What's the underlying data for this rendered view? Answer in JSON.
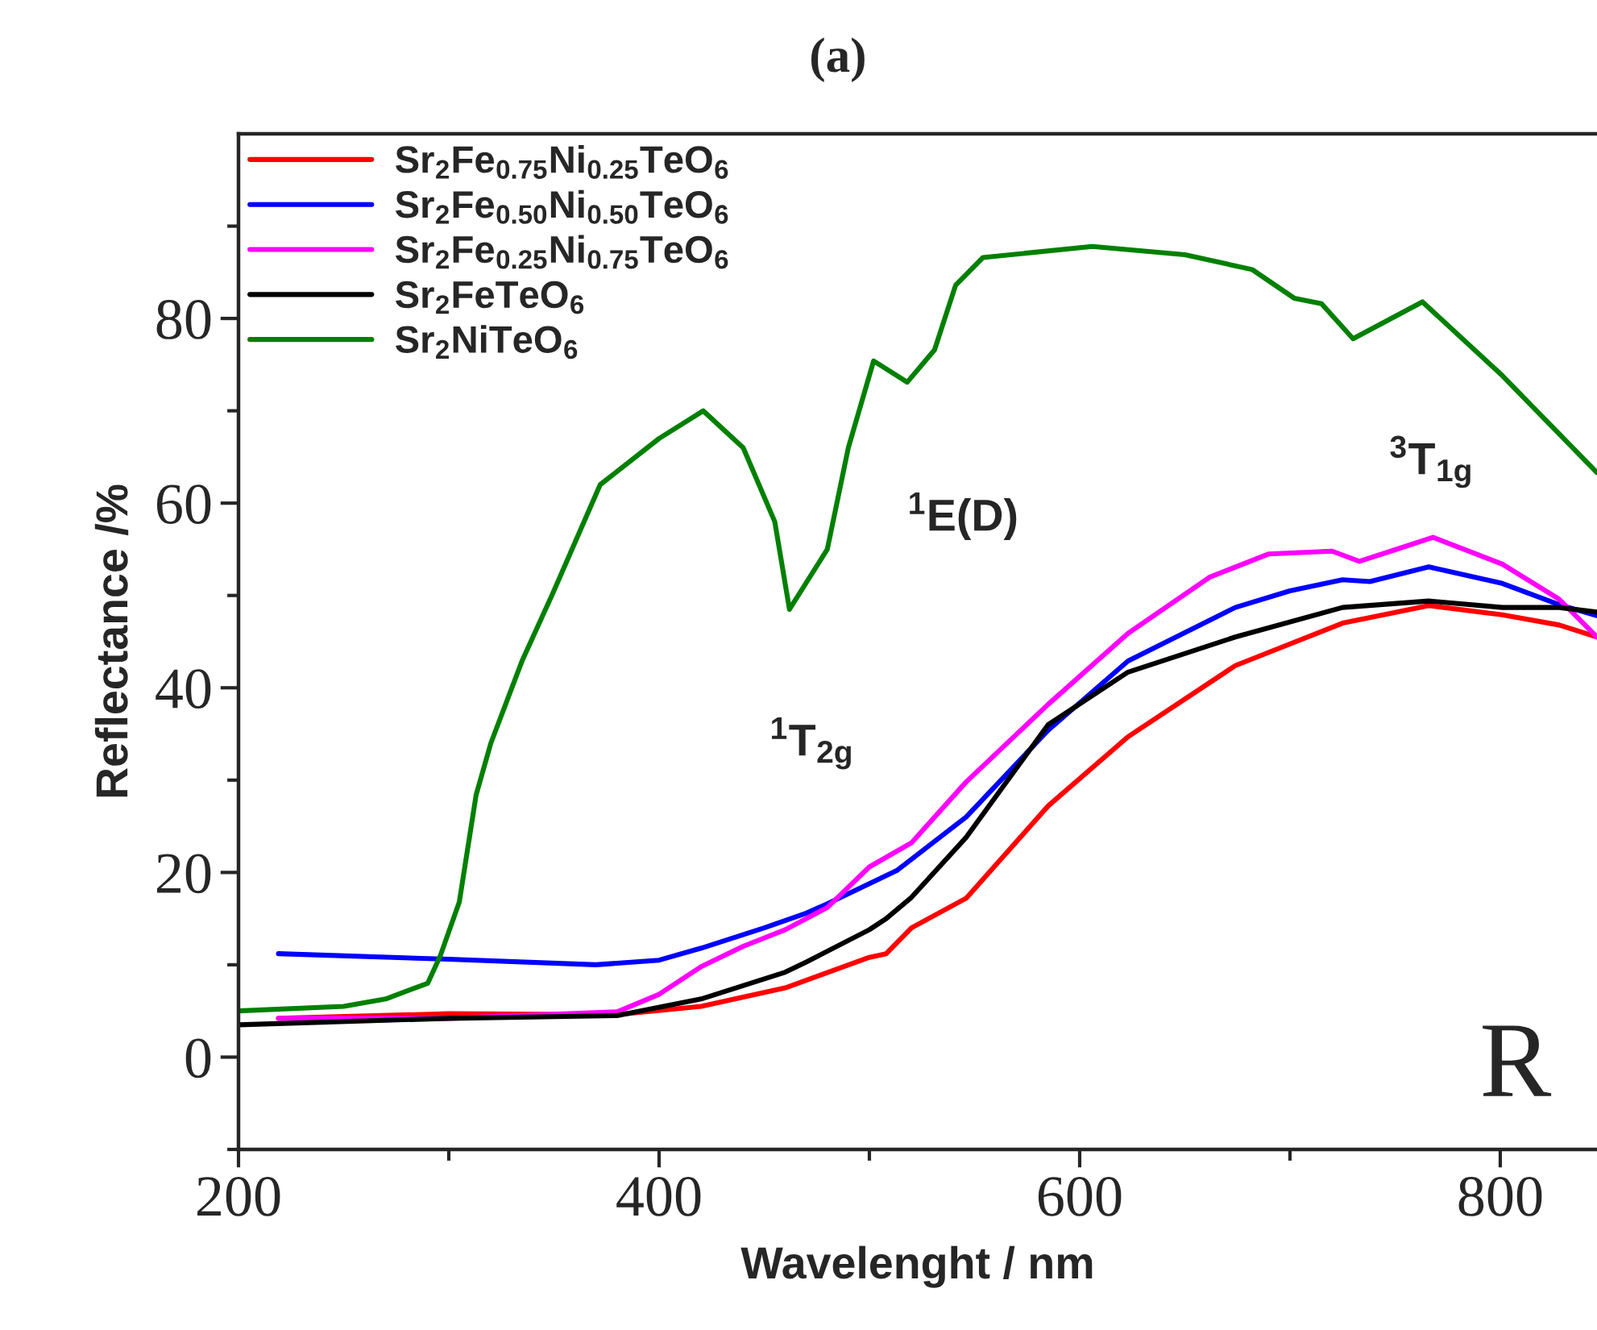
{
  "chart_data": {
    "type": "line",
    "title": "(a)",
    "xlabel": "Wavelenght / nm",
    "ylabel": "Reflectance /%",
    "xlim": [
      200,
      846
    ],
    "ylim": [
      -10,
      100
    ],
    "xticks": [
      200,
      {
        "value": 300,
        "label": null
      },
      400,
      {
        "value": 500,
        "label": null
      },
      600,
      {
        "value": 700,
        "label": null
      },
      800
    ],
    "yticks": [
      {
        "value": -10,
        "label": null
      },
      0,
      {
        "value": 10,
        "label": null
      },
      20,
      {
        "value": 30,
        "label": null
      },
      40,
      {
        "value": 50,
        "label": null
      },
      60,
      {
        "value": 70,
        "label": null
      },
      80,
      {
        "value": 90,
        "label": null
      }
    ],
    "grid": false,
    "legend": "top left",
    "marker": "none",
    "line_style": "solid",
    "series": [
      {
        "name": "Sr$_{2}$Fe$_{0.75}$Ni$_{0.25}$TeO$_{6}$",
        "color": "#ff0000",
        "x": [
          219,
          300,
          380,
          420,
          460,
          500,
          508,
          520,
          546,
          585,
          623,
          674,
          725,
          766,
          801,
          828,
          846
        ],
        "values": [
          4.2,
          4.7,
          4.6,
          5.5,
          7.5,
          10.8,
          11.2,
          14.0,
          17.2,
          27.2,
          34.7,
          42.4,
          47.0,
          48.9,
          47.9,
          46.8,
          45.5
        ]
      },
      {
        "name": "Sr$_{2}$Fe$_{0.50}$Ni$_{0.50}$TeO$_{6}$",
        "color": "#0000ff",
        "x": [
          219,
          300,
          370,
          400,
          420,
          450,
          470,
          480,
          513,
          546,
          585,
          623,
          674,
          700,
          725,
          738,
          766,
          801,
          828,
          846
        ],
        "values": [
          11.2,
          10.6,
          10.0,
          10.5,
          11.8,
          14.0,
          15.6,
          16.6,
          20.2,
          26.0,
          35.4,
          42.9,
          48.7,
          50.5,
          51.7,
          51.5,
          53.1,
          51.3,
          49.0,
          47.8
        ]
      },
      {
        "name": "Sr$_{2}$Fe$_{0.25}$Ni$_{0.75}$TeO$_{6}$",
        "color": "#ff00ff",
        "x": [
          219,
          300,
          380,
          400,
          420,
          440,
          460,
          480,
          500,
          520,
          546,
          585,
          623,
          662,
          690,
          720,
          733,
          748,
          768,
          801,
          828,
          846
        ],
        "values": [
          4.2,
          4.2,
          4.9,
          6.8,
          9.8,
          12.0,
          13.8,
          16.2,
          20.6,
          23.2,
          29.8,
          38.2,
          45.9,
          52.0,
          54.5,
          54.8,
          53.7,
          54.8,
          56.3,
          53.4,
          49.6,
          45.5
        ]
      },
      {
        "name": "Sr$_{2}$FeTeO$_{6}$",
        "color": "#000000",
        "x": [
          200,
          300,
          380,
          420,
          460,
          470,
          500,
          508,
          520,
          546,
          585,
          623,
          674,
          725,
          766,
          801,
          828,
          846
        ],
        "values": [
          3.5,
          4.2,
          4.5,
          6.3,
          9.2,
          10.3,
          13.8,
          15.0,
          17.3,
          23.8,
          36.0,
          41.7,
          45.5,
          48.7,
          49.4,
          48.7,
          48.7,
          48.2
        ]
      },
      {
        "name": "Sr$_{2}$NiTeO$_{6}$",
        "color": "#008000",
        "x": [
          200,
          250,
          270,
          290,
          296,
          305,
          313,
          320,
          335,
          349,
          372,
          400,
          421,
          440,
          455,
          462,
          480,
          490,
          502,
          518,
          531,
          541,
          554,
          606,
          650,
          682,
          702,
          715,
          730,
          763,
          801,
          846
        ],
        "values": [
          5.0,
          5.5,
          6.3,
          8.0,
          11.0,
          16.8,
          28.4,
          34.0,
          43.0,
          50.0,
          62.0,
          67.0,
          70.0,
          66.0,
          58.0,
          48.5,
          55.0,
          66.0,
          75.4,
          73.1,
          76.6,
          83.6,
          86.6,
          87.8,
          86.9,
          85.3,
          82.2,
          81.6,
          77.8,
          81.8,
          73.8,
          63.3
        ]
      }
    ],
    "annotations": [
      {
        "text": "$^{1}$T$_{2g}$",
        "x": 462,
        "y": 48.5
      },
      {
        "text": "$^{1}$E(D)",
        "x": 518,
        "y": 73.1
      },
      {
        "text": "$^{3}$T$_{1g}$",
        "x": 730,
        "y": 77.8
      },
      "R"
    ]
  }
}
